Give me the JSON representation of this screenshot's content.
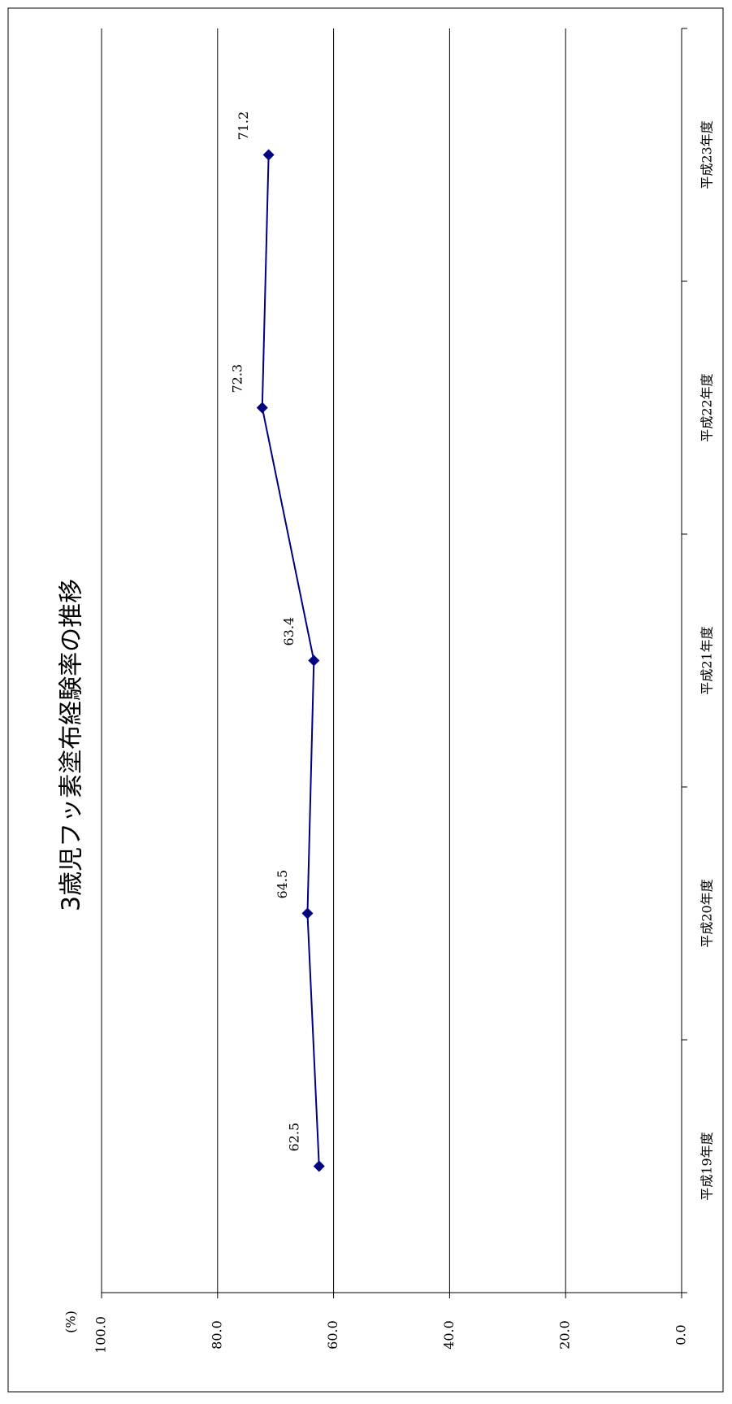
{
  "chart_data": {
    "type": "line",
    "title": "3歳児フッ素塗布経験率の推移",
    "ylabel": "(%)",
    "xlabel": "",
    "categories": [
      "平成19年度",
      "平成20年度",
      "平成21年度",
      "平成22年度",
      "平成23年度"
    ],
    "series": [
      {
        "values": [
          62.5,
          64.5,
          63.4,
          72.3,
          71.2
        ]
      }
    ],
    "data_labels": [
      "62.5",
      "64.5",
      "63.4",
      "72.3",
      "71.2"
    ],
    "ylim": [
      0,
      100
    ],
    "yticks": [
      0,
      20,
      40,
      60,
      80,
      100
    ],
    "ytick_labels": [
      "0.0",
      "20.0",
      "40.0",
      "60.0",
      "80.0",
      "100.0"
    ],
    "grid": true,
    "legend": "none",
    "orientation": "rotated 90° counter-clockwise",
    "colors": {
      "series": "#000080",
      "grid": "#000000"
    }
  }
}
